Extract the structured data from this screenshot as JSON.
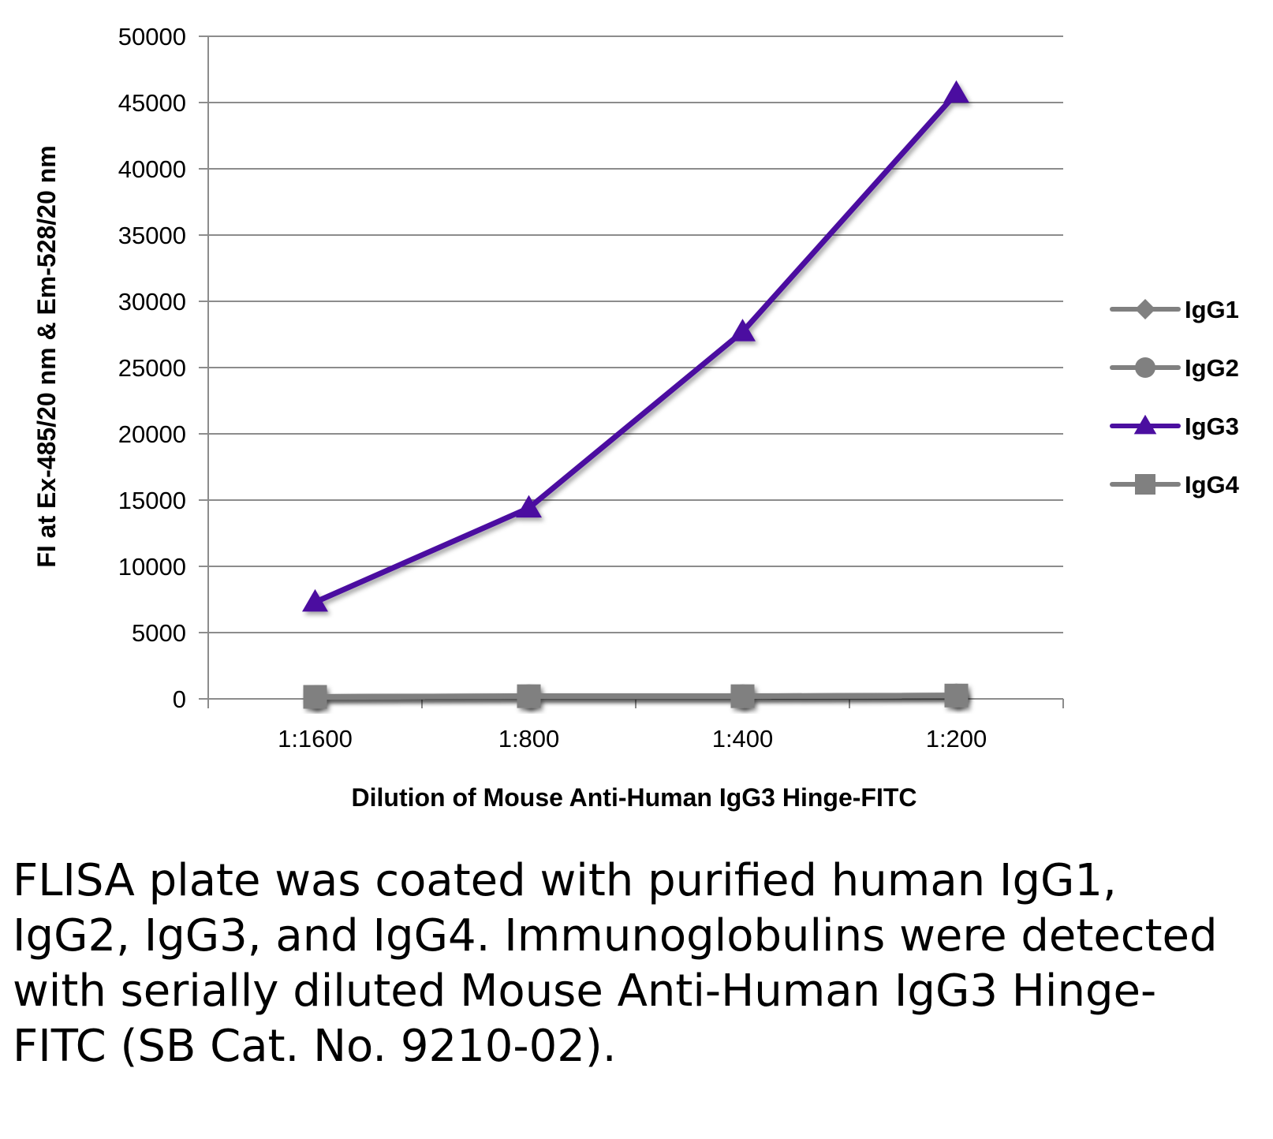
{
  "chart_data": {
    "type": "line",
    "categories": [
      "1:1600",
      "1:800",
      "1:400",
      "1:200"
    ],
    "xlabel": "Dilution of Mouse Anti-Human IgG3 Hinge-FITC",
    "ylabel": "FI at Ex-485/20 nm & Em-528/20 nm",
    "ylim": [
      0,
      50000
    ],
    "yticks": [
      0,
      5000,
      10000,
      15000,
      20000,
      25000,
      30000,
      35000,
      40000,
      45000,
      50000
    ],
    "grid": true,
    "legend_position": "right",
    "series": [
      {
        "name": "IgG1",
        "marker": "diamond",
        "color": "#808080",
        "values": [
          150,
          200,
          200,
          250
        ]
      },
      {
        "name": "IgG2",
        "marker": "circle",
        "color": "#808080",
        "values": [
          150,
          200,
          200,
          250
        ]
      },
      {
        "name": "IgG3",
        "marker": "triangle",
        "color": "#4b0fa0",
        "values": [
          7300,
          14400,
          27700,
          45700
        ]
      },
      {
        "name": "IgG4",
        "marker": "square",
        "color": "#808080",
        "values": [
          150,
          200,
          200,
          250
        ]
      }
    ]
  },
  "caption": "FLISA plate was coated with purified human IgG1, IgG2, IgG3, and IgG4.  Immunoglobulins were detected with serially diluted Mouse Anti-Human IgG3 Hinge-FITC (SB Cat. No. 9210-02)."
}
